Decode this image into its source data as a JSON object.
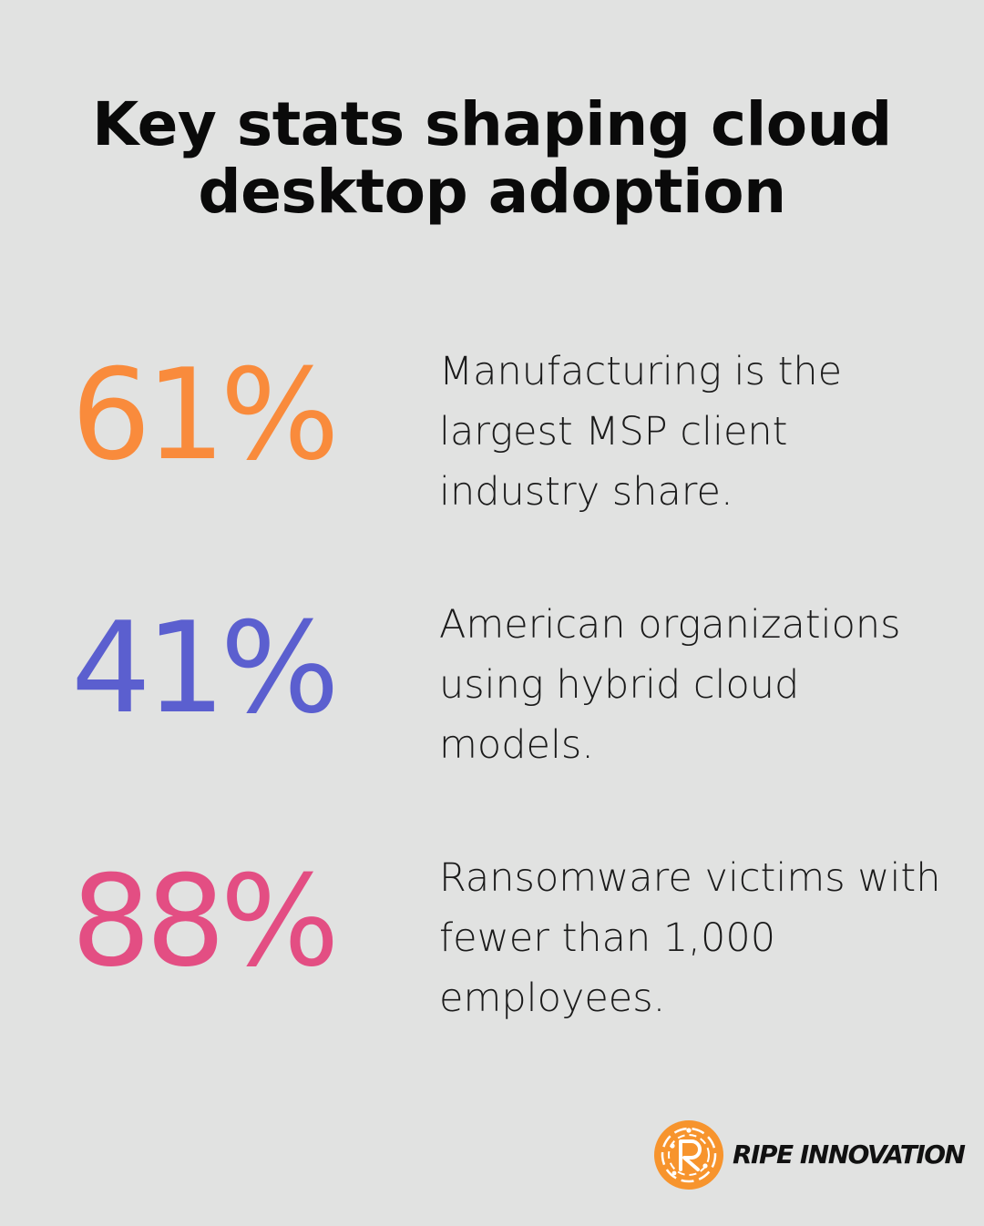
{
  "title": {
    "line1": "Key stats shaping cloud",
    "line2": "desktop adoption"
  },
  "stats": [
    {
      "value": "61%",
      "color": "#f98b3c",
      "text": "Manufacturing is the largest MSP client industry share."
    },
    {
      "value": "41%",
      "color": "#5b5fcf",
      "text": "American organizations using hybrid cloud models."
    },
    {
      "value": "88%",
      "color": "#e34e83",
      "text": "Ransomware victims with fewer than 1,000 employees."
    }
  ],
  "logo": {
    "name": "RIPE INNOVATION",
    "icon": "ripe-r-circuit-icon",
    "color": "#f7942d"
  },
  "colors": {
    "background": "#e1e2e1",
    "title": "#0a0a0a",
    "body_text": "#1a1a1a"
  }
}
